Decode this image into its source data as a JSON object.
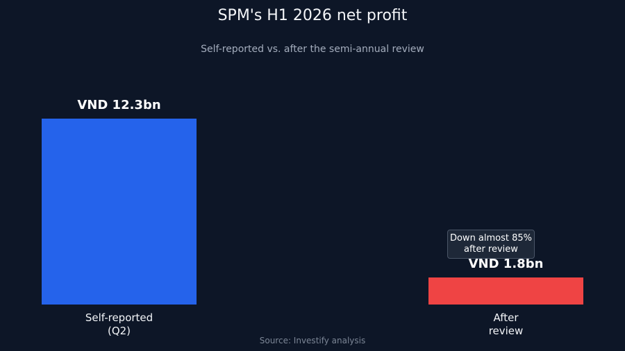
{
  "chart_data": {
    "type": "bar",
    "title": "SPM's H1 2026 net profit",
    "subtitle": "Self-reported vs. after the semi-annual review",
    "categories": [
      [
        "Self-reported",
        "(Q2)"
      ],
      [
        "After",
        "review"
      ]
    ],
    "values": [
      12.3,
      1.8
    ],
    "value_labels": [
      "VND 12.3bn",
      "VND 1.8bn"
    ],
    "unit": "VND bn",
    "colors": [
      "#2563eb",
      "#ef4444"
    ],
    "annotation": {
      "lines": [
        "Down almost 85%",
        "after review"
      ]
    },
    "source": "Source: Investify analysis",
    "grid": false,
    "legend": "none"
  }
}
